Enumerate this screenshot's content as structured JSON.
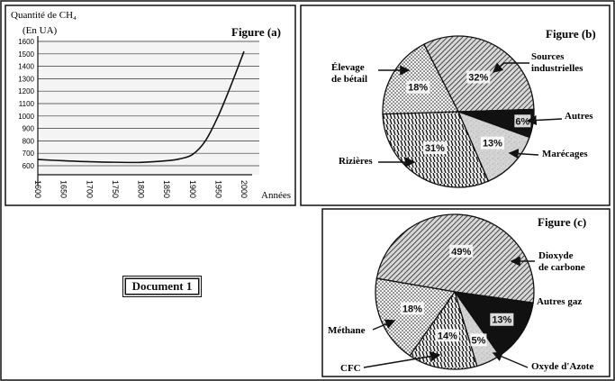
{
  "document_label": "Document 1",
  "chart_data": [
    {
      "type": "line",
      "title": "Figure (a)",
      "ylabel": "Quantité de CH₄",
      "ylabel_unit": "(En UA)",
      "xlabel": "Années",
      "x_ticks": [
        1600,
        1650,
        1700,
        1750,
        1800,
        1850,
        1900,
        1950,
        2000
      ],
      "y_ticks": [
        600,
        700,
        800,
        900,
        1000,
        1100,
        1200,
        1300,
        1400,
        1500,
        1600
      ],
      "xlim": [
        1600,
        2000
      ],
      "ylim": [
        600,
        1600
      ],
      "grid": true,
      "series": [
        {
          "x": [
            1600,
            1650,
            1700,
            1750,
            1800,
            1850,
            1875,
            1900,
            1925,
            1950,
            1975,
            2000
          ],
          "values": [
            650,
            640,
            632,
            628,
            627,
            640,
            655,
            690,
            800,
            1000,
            1250,
            1520
          ]
        }
      ]
    },
    {
      "type": "pie",
      "title": "Figure (b)",
      "slices": [
        {
          "label": "Sources industrielles",
          "value": 32,
          "text": "32%",
          "pattern": "hatch"
        },
        {
          "label": "Autres",
          "value": 6,
          "text": "6%",
          "pattern": "black"
        },
        {
          "label": "Marécages",
          "value": 13,
          "text": "13%",
          "pattern": "speckle"
        },
        {
          "label": "Rizières",
          "value": 31,
          "text": "31%",
          "pattern": "vertical"
        },
        {
          "label": "Élevage de bétail",
          "value": 18,
          "text": "18%",
          "pattern": "dots"
        }
      ]
    },
    {
      "type": "pie",
      "title": "Figure (c)",
      "slices": [
        {
          "label": "Dioxyde de carbone",
          "value": 49,
          "text": "49%",
          "pattern": "hatch"
        },
        {
          "label": "Autres gaz",
          "value": 13,
          "text": "13%",
          "pattern": "black"
        },
        {
          "label": "Oxyde d'Azote",
          "value": 5,
          "text": "5%",
          "pattern": "speckle"
        },
        {
          "label": "CFC",
          "value": 14,
          "text": "14%",
          "pattern": "vertical"
        },
        {
          "label": "Méthane",
          "value": 18,
          "text": "18%",
          "pattern": "dots"
        }
      ]
    }
  ]
}
